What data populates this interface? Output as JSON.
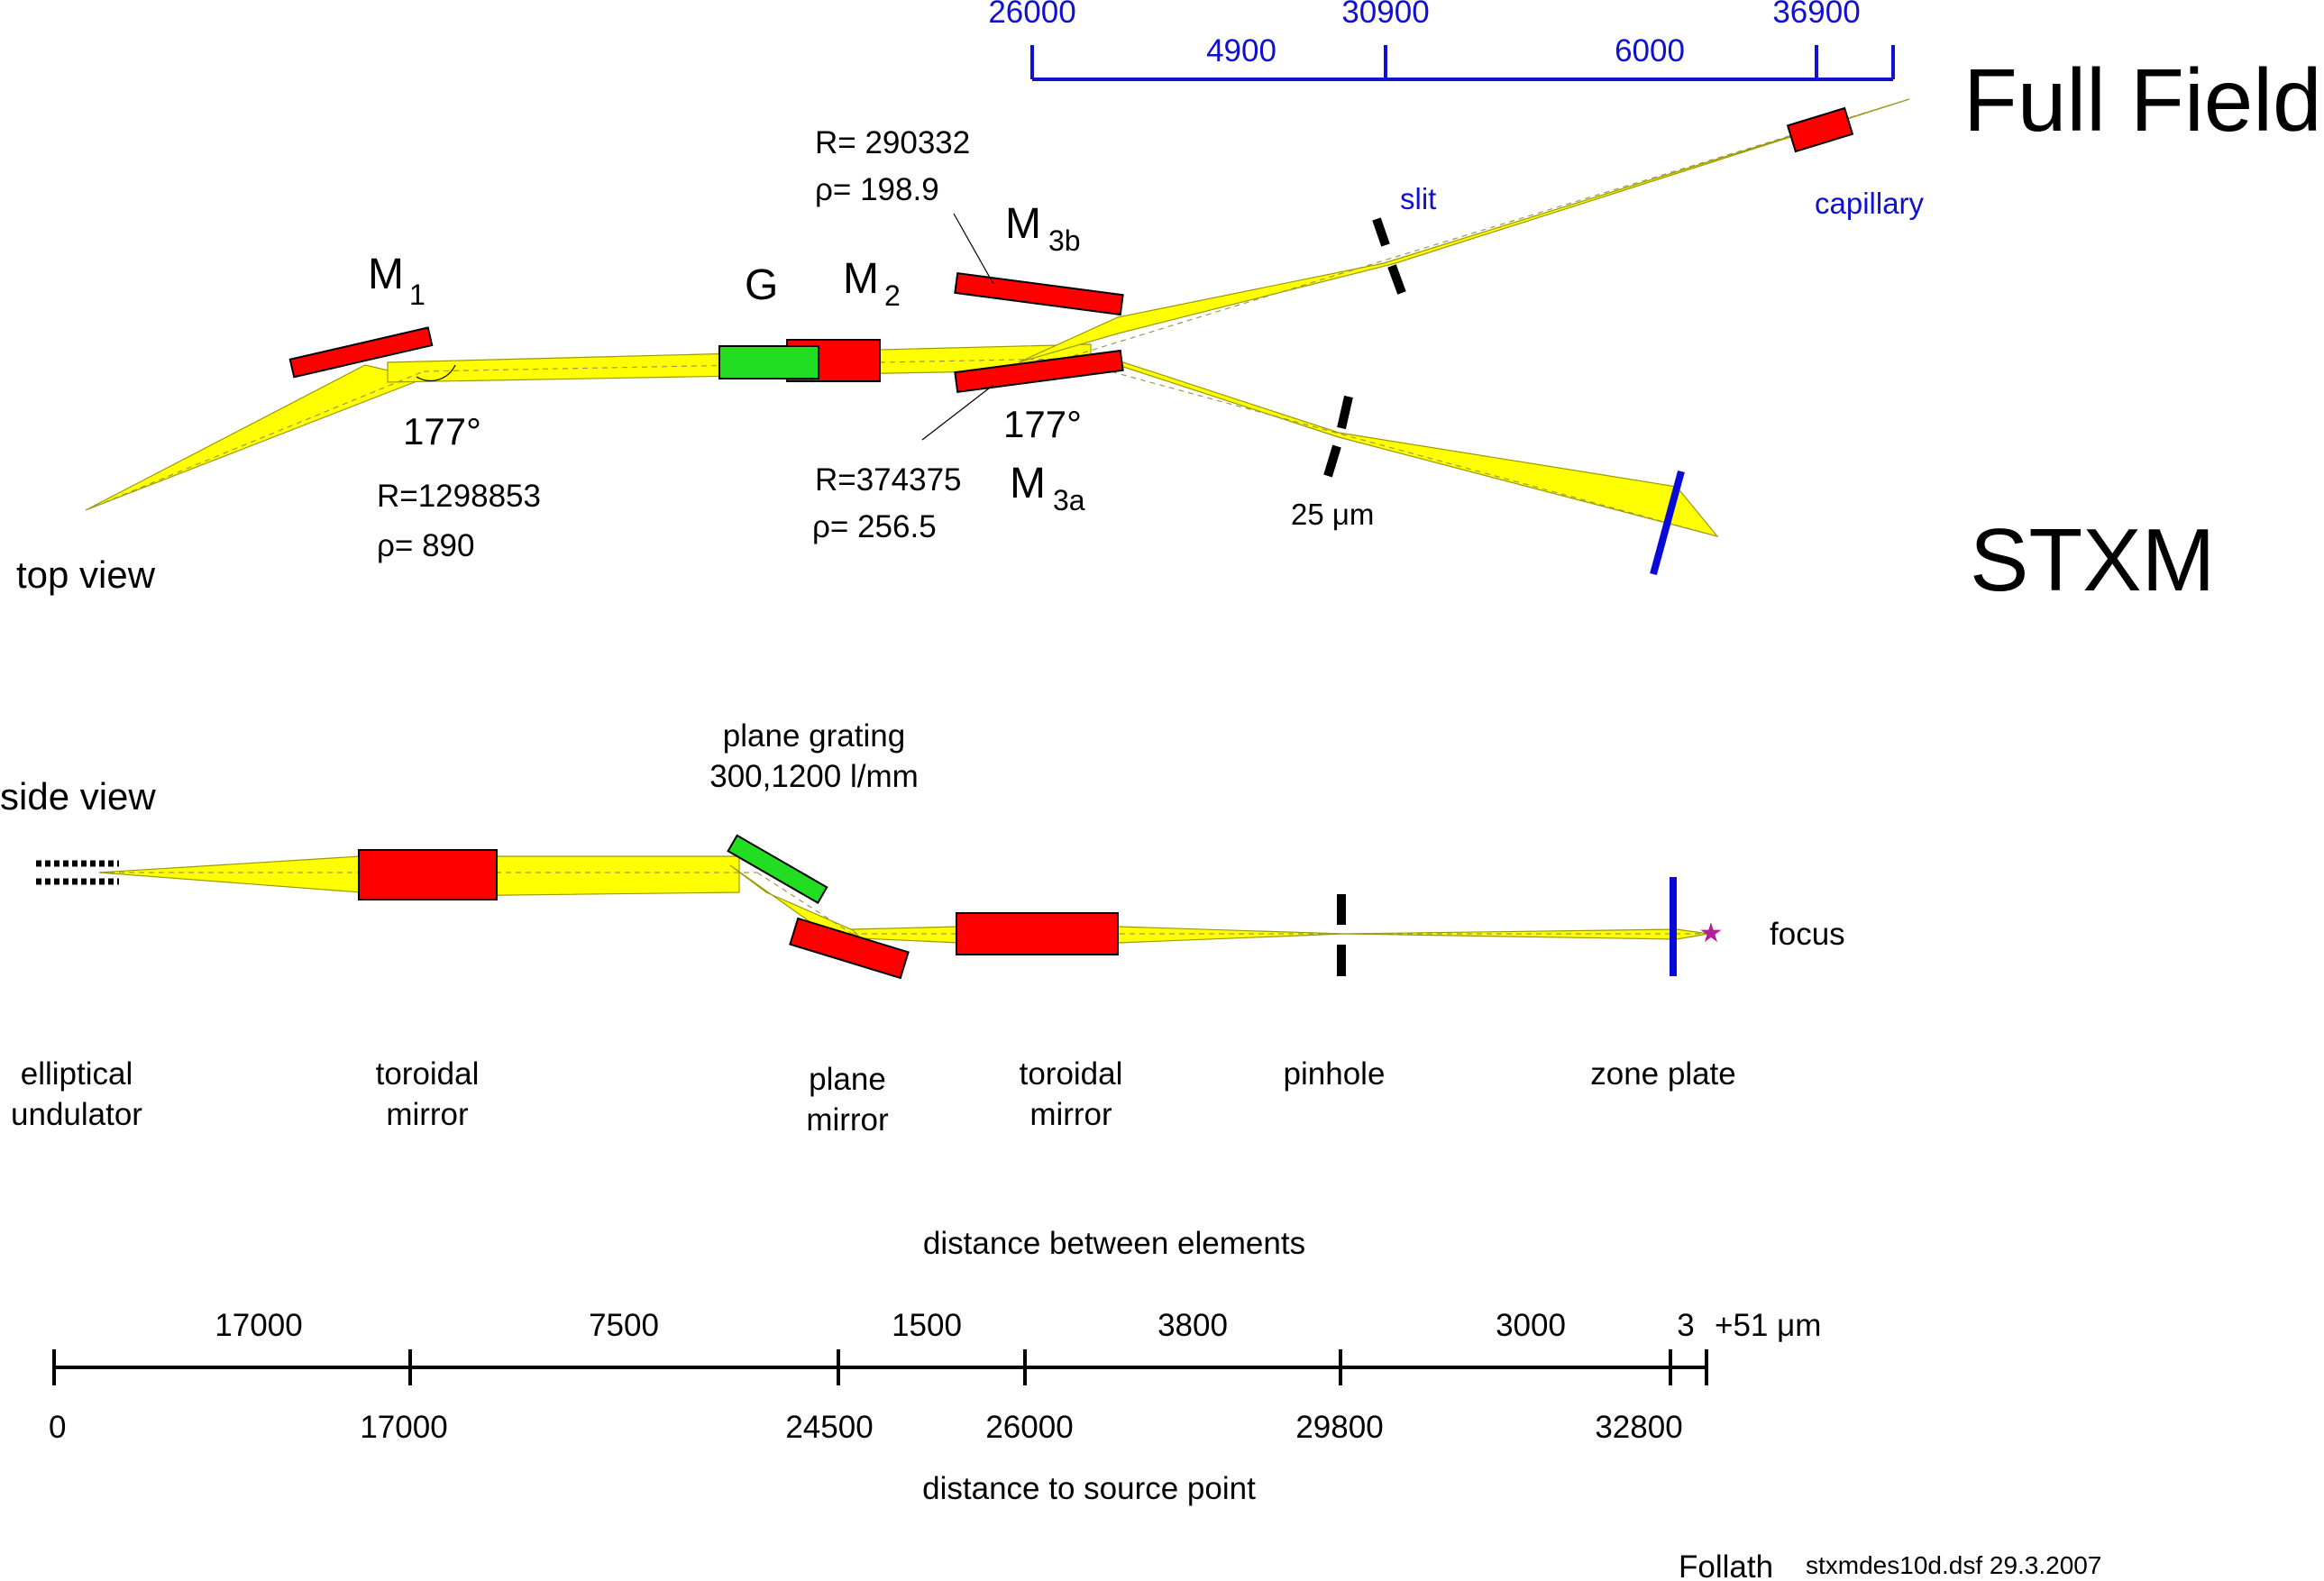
{
  "views": {
    "top_view_label": "top view",
    "side_view_label": "side view"
  },
  "branches": {
    "full_field": "Full Field",
    "stxm": "STXM"
  },
  "top_view": {
    "m1": {
      "label": "M",
      "sub": "1",
      "angle": "177°",
      "radius": "R=1298853",
      "rho": "ρ= 890"
    },
    "grating": {
      "label": "G"
    },
    "m2": {
      "label": "M",
      "sub": "2"
    },
    "m3b": {
      "label": "M",
      "sub": "3b",
      "radius": "R= 290332",
      "rho": "ρ= 198.9"
    },
    "m3a": {
      "label": "M",
      "sub": "3a",
      "angle": "177°",
      "radius": "R=374375",
      "rho": "ρ= 256.5"
    },
    "slit_label": "slit",
    "capillary_label": "capillary",
    "pinhole_size": "25  μm"
  },
  "full_field_scale": {
    "positions": [
      "26000",
      "30900",
      "36900"
    ],
    "segments": [
      "4900",
      "6000"
    ]
  },
  "side_view": {
    "grating_title": "plane grating",
    "grating_spec": "300,1200 l/mm",
    "focus_label": "focus"
  },
  "element_labels": [
    {
      "line1": "elliptical",
      "line2": "undulator"
    },
    {
      "line1": "toroidal",
      "line2": "mirror"
    },
    {
      "line1": "plane",
      "line2": "mirror"
    },
    {
      "line1": "toroidal",
      "line2": "mirror"
    },
    {
      "line1": "pinhole",
      "line2": ""
    },
    {
      "line1": "zone plate",
      "line2": ""
    }
  ],
  "distance_scale": {
    "title_between": "distance between elements",
    "title_source": "distance to source point",
    "segments": [
      "17000",
      "7500",
      "1500",
      "3800",
      "3000",
      "3",
      "+51 μm"
    ],
    "positions": [
      "0",
      "17000",
      "24500",
      "26000",
      "29800",
      "32800"
    ]
  },
  "footer": {
    "author": "Follath",
    "file": "stxmdes10d.dsf  29.3.2007"
  },
  "colors": {
    "beam": "#ffff00",
    "mirror": "#ff0000",
    "grating": "#22dd22",
    "zone_plate": "#0a0ad8",
    "full_field_scale": "#1010d0"
  }
}
